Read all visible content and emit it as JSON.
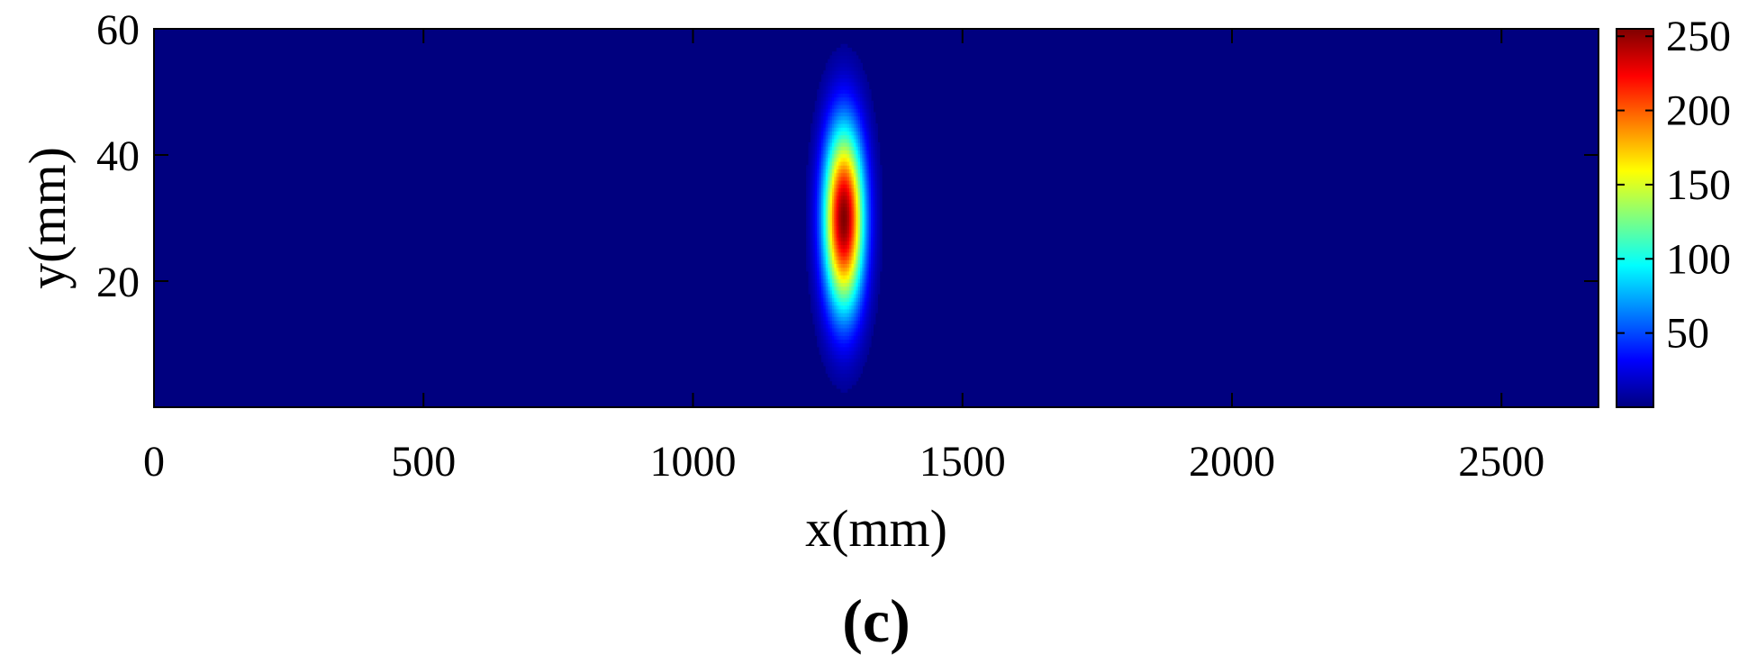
{
  "chart_data": {
    "type": "heatmap",
    "xlabel": "x(mm)",
    "ylabel": "y(mm)",
    "xlim": [
      0,
      2680
    ],
    "ylim": [
      0,
      60
    ],
    "xticks": [
      0,
      500,
      1000,
      1500,
      2000,
      2500
    ],
    "xtick_labels": [
      "0",
      "500",
      "1000",
      "1500",
      "2000",
      "2500"
    ],
    "yticks": [
      20,
      40,
      60
    ],
    "ytick_labels": [
      "20",
      "40",
      "60"
    ],
    "colormap": "jet",
    "clim": [
      0,
      255
    ],
    "colorbar": {
      "ticks": [
        50,
        100,
        150,
        200,
        250
      ],
      "tick_labels": [
        "50",
        "100",
        "150",
        "200",
        "250"
      ],
      "placement": "right"
    },
    "grid": false,
    "peak": {
      "x": 1280,
      "y": 30,
      "value": 255
    },
    "spread": {
      "x_sigma": 26,
      "y_sigma": 10
    },
    "background_value": 0
  },
  "caption": "(c)"
}
